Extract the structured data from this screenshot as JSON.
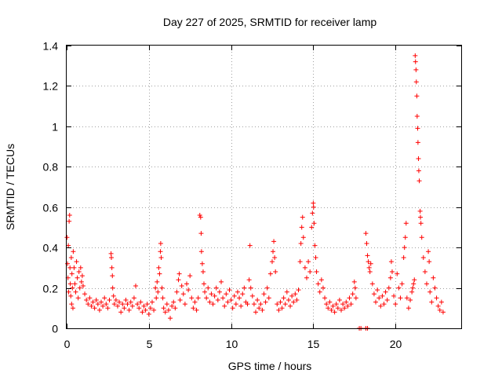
{
  "chart_data": {
    "type": "scatter",
    "title": "Day 227 of 2025, SRMTID for receiver lamp",
    "xlabel": "GPS time / hours",
    "ylabel": "SRMTID / TECUs",
    "xlim": [
      0,
      24
    ],
    "ylim": [
      0,
      1.4
    ],
    "xticks": [
      0,
      5,
      10,
      15,
      20
    ],
    "xtick_labels": [
      "0",
      "5",
      "10",
      "15",
      "20"
    ],
    "yticks": [
      0,
      0.2,
      0.4,
      0.6,
      0.8,
      1.0,
      1.2,
      1.4
    ],
    "ytick_labels": [
      "0",
      "0.2",
      "0.4",
      "0.6",
      "0.8",
      "1",
      "1.2",
      "1.4"
    ],
    "grid": true,
    "marker": "plus",
    "color": "#ff0000",
    "series": [
      {
        "name": "SRMTID",
        "points": [
          [
            0.02,
            0.45
          ],
          [
            0.05,
            0.32
          ],
          [
            0.08,
            0.25
          ],
          [
            0.1,
            0.41
          ],
          [
            0.12,
            0.18
          ],
          [
            0.15,
            0.53
          ],
          [
            0.18,
            0.56
          ],
          [
            0.2,
            0.3
          ],
          [
            0.22,
            0.22
          ],
          [
            0.25,
            0.16
          ],
          [
            0.28,
            0.35
          ],
          [
            0.3,
            0.12
          ],
          [
            0.32,
            0.27
          ],
          [
            0.35,
            0.2
          ],
          [
            0.38,
            0.1
          ],
          [
            0.4,
            0.38
          ],
          [
            0.45,
            0.3
          ],
          [
            0.5,
            0.22
          ],
          [
            0.55,
            0.18
          ],
          [
            0.6,
            0.33
          ],
          [
            0.65,
            0.25
          ],
          [
            0.7,
            0.15
          ],
          [
            0.75,
            0.28
          ],
          [
            0.8,
            0.2
          ],
          [
            0.85,
            0.3
          ],
          [
            0.9,
            0.23
          ],
          [
            0.95,
            0.26
          ],
          [
            1.0,
            0.21
          ],
          [
            1.1,
            0.17
          ],
          [
            1.2,
            0.14
          ],
          [
            1.3,
            0.12
          ],
          [
            1.4,
            0.15
          ],
          [
            1.5,
            0.11
          ],
          [
            1.6,
            0.13
          ],
          [
            1.7,
            0.1
          ],
          [
            1.8,
            0.14
          ],
          [
            1.9,
            0.12
          ],
          [
            2.0,
            0.09
          ],
          [
            2.1,
            0.13
          ],
          [
            2.2,
            0.11
          ],
          [
            2.3,
            0.15
          ],
          [
            2.4,
            0.12
          ],
          [
            2.5,
            0.1
          ],
          [
            2.6,
            0.14
          ],
          [
            2.7,
            0.37
          ],
          [
            2.72,
            0.35
          ],
          [
            2.75,
            0.3
          ],
          [
            2.78,
            0.26
          ],
          [
            2.8,
            0.2
          ],
          [
            2.85,
            0.16
          ],
          [
            2.9,
            0.12
          ],
          [
            3.0,
            0.14
          ],
          [
            3.1,
            0.11
          ],
          [
            3.2,
            0.13
          ],
          [
            3.3,
            0.08
          ],
          [
            3.4,
            0.12
          ],
          [
            3.5,
            0.1
          ],
          [
            3.6,
            0.14
          ],
          [
            3.7,
            0.12
          ],
          [
            3.8,
            0.09
          ],
          [
            3.9,
            0.13
          ],
          [
            4.0,
            0.11
          ],
          [
            4.1,
            0.15
          ],
          [
            4.2,
            0.21
          ],
          [
            4.3,
            0.12
          ],
          [
            4.4,
            0.1
          ],
          [
            4.5,
            0.13
          ],
          [
            4.6,
            0.08
          ],
          [
            4.7,
            0.11
          ],
          [
            4.8,
            0.09
          ],
          [
            4.9,
            0.12
          ],
          [
            5.0,
            0.07
          ],
          [
            5.1,
            0.1
          ],
          [
            5.2,
            0.13
          ],
          [
            5.3,
            0.09
          ],
          [
            5.4,
            0.2
          ],
          [
            5.45,
            0.15
          ],
          [
            5.5,
            0.23
          ],
          [
            5.55,
            0.18
          ],
          [
            5.6,
            0.3
          ],
          [
            5.65,
            0.27
          ],
          [
            5.7,
            0.38
          ],
          [
            5.72,
            0.42
          ],
          [
            5.75,
            0.35
          ],
          [
            5.8,
            0.2
          ],
          [
            5.85,
            0.15
          ],
          [
            5.9,
            0.1
          ],
          [
            6.0,
            0.08
          ],
          [
            6.1,
            0.12
          ],
          [
            6.2,
            0.09
          ],
          [
            6.3,
            0.05
          ],
          [
            6.4,
            0.11
          ],
          [
            6.5,
            0.13
          ],
          [
            6.6,
            0.1
          ],
          [
            6.7,
            0.18
          ],
          [
            6.8,
            0.24
          ],
          [
            6.85,
            0.27
          ],
          [
            6.9,
            0.14
          ],
          [
            7.0,
            0.21
          ],
          [
            7.1,
            0.17
          ],
          [
            7.2,
            0.12
          ],
          [
            7.3,
            0.22
          ],
          [
            7.4,
            0.19
          ],
          [
            7.5,
            0.26
          ],
          [
            7.6,
            0.15
          ],
          [
            7.7,
            0.1
          ],
          [
            7.8,
            0.13
          ],
          [
            7.9,
            0.09
          ],
          [
            8.0,
            0.15
          ],
          [
            8.1,
            0.56
          ],
          [
            8.15,
            0.55
          ],
          [
            8.18,
            0.47
          ],
          [
            8.2,
            0.38
          ],
          [
            8.25,
            0.32
          ],
          [
            8.3,
            0.28
          ],
          [
            8.35,
            0.22
          ],
          [
            8.4,
            0.18
          ],
          [
            8.5,
            0.15
          ],
          [
            8.6,
            0.2
          ],
          [
            8.7,
            0.13
          ],
          [
            8.8,
            0.17
          ],
          [
            8.9,
            0.12
          ],
          [
            9.0,
            0.16
          ],
          [
            9.1,
            0.2
          ],
          [
            9.2,
            0.14
          ],
          [
            9.3,
            0.18
          ],
          [
            9.4,
            0.23
          ],
          [
            9.5,
            0.15
          ],
          [
            9.6,
            0.11
          ],
          [
            9.7,
            0.17
          ],
          [
            9.8,
            0.13
          ],
          [
            9.9,
            0.19
          ],
          [
            10.0,
            0.14
          ],
          [
            10.1,
            0.1
          ],
          [
            10.2,
            0.16
          ],
          [
            10.3,
            0.12
          ],
          [
            10.4,
            0.18
          ],
          [
            10.5,
            0.15
          ],
          [
            10.6,
            0.11
          ],
          [
            10.7,
            0.17
          ],
          [
            10.8,
            0.2
          ],
          [
            10.9,
            0.13
          ],
          [
            11.0,
            0.12
          ],
          [
            11.1,
            0.24
          ],
          [
            11.15,
            0.41
          ],
          [
            11.2,
            0.2
          ],
          [
            11.3,
            0.16
          ],
          [
            11.4,
            0.12
          ],
          [
            11.5,
            0.08
          ],
          [
            11.6,
            0.14
          ],
          [
            11.7,
            0.1
          ],
          [
            11.8,
            0.12
          ],
          [
            11.9,
            0.09
          ],
          [
            12.0,
            0.17
          ],
          [
            12.1,
            0.13
          ],
          [
            12.2,
            0.2
          ],
          [
            12.3,
            0.15
          ],
          [
            12.4,
            0.27
          ],
          [
            12.5,
            0.33
          ],
          [
            12.55,
            0.38
          ],
          [
            12.6,
            0.43
          ],
          [
            12.65,
            0.35
          ],
          [
            12.7,
            0.28
          ],
          [
            12.8,
            0.12
          ],
          [
            12.9,
            0.09
          ],
          [
            13.0,
            0.13
          ],
          [
            13.1,
            0.1
          ],
          [
            13.2,
            0.15
          ],
          [
            13.3,
            0.12
          ],
          [
            13.4,
            0.18
          ],
          [
            13.5,
            0.14
          ],
          [
            13.6,
            0.11
          ],
          [
            13.7,
            0.16
          ],
          [
            13.8,
            0.13
          ],
          [
            13.9,
            0.17
          ],
          [
            14.0,
            0.14
          ],
          [
            14.1,
            0.19
          ],
          [
            14.2,
            0.33
          ],
          [
            14.25,
            0.42
          ],
          [
            14.3,
            0.5
          ],
          [
            14.35,
            0.55
          ],
          [
            14.4,
            0.45
          ],
          [
            14.5,
            0.3
          ],
          [
            14.6,
            0.25
          ],
          [
            14.7,
            0.33
          ],
          [
            14.8,
            0.28
          ],
          [
            14.9,
            0.5
          ],
          [
            14.95,
            0.57
          ],
          [
            15.0,
            0.62
          ],
          [
            15.02,
            0.6
          ],
          [
            15.05,
            0.52
          ],
          [
            15.1,
            0.41
          ],
          [
            15.15,
            0.35
          ],
          [
            15.2,
            0.28
          ],
          [
            15.3,
            0.22
          ],
          [
            15.4,
            0.18
          ],
          [
            15.5,
            0.24
          ],
          [
            15.6,
            0.2
          ],
          [
            15.7,
            0.15
          ],
          [
            15.8,
            0.12
          ],
          [
            15.9,
            0.1
          ],
          [
            16.0,
            0.13
          ],
          [
            16.1,
            0.09
          ],
          [
            16.2,
            0.11
          ],
          [
            16.3,
            0.08
          ],
          [
            16.4,
            0.12
          ],
          [
            16.5,
            0.1
          ],
          [
            16.6,
            0.14
          ],
          [
            16.7,
            0.09
          ],
          [
            16.8,
            0.12
          ],
          [
            16.9,
            0.1
          ],
          [
            17.0,
            0.13
          ],
          [
            17.1,
            0.11
          ],
          [
            17.2,
            0.15
          ],
          [
            17.3,
            0.12
          ],
          [
            17.4,
            0.17
          ],
          [
            17.5,
            0.23
          ],
          [
            17.55,
            0.2
          ],
          [
            17.6,
            0.15
          ],
          [
            17.8,
            0.0
          ],
          [
            17.9,
            0.0
          ],
          [
            18.2,
            0.0
          ],
          [
            18.3,
            0.0
          ],
          [
            18.2,
            0.47
          ],
          [
            18.25,
            0.42
          ],
          [
            18.3,
            0.36
          ],
          [
            18.35,
            0.33
          ],
          [
            18.4,
            0.3
          ],
          [
            18.45,
            0.28
          ],
          [
            18.5,
            0.32
          ],
          [
            18.6,
            0.22
          ],
          [
            18.7,
            0.17
          ],
          [
            18.8,
            0.13
          ],
          [
            18.9,
            0.19
          ],
          [
            19.0,
            0.15
          ],
          [
            19.1,
            0.11
          ],
          [
            19.2,
            0.16
          ],
          [
            19.3,
            0.12
          ],
          [
            19.4,
            0.18
          ],
          [
            19.5,
            0.14
          ],
          [
            19.6,
            0.2
          ],
          [
            19.7,
            0.25
          ],
          [
            19.75,
            0.33
          ],
          [
            19.8,
            0.28
          ],
          [
            19.9,
            0.16
          ],
          [
            20.0,
            0.12
          ],
          [
            20.1,
            0.27
          ],
          [
            20.2,
            0.2
          ],
          [
            20.3,
            0.15
          ],
          [
            20.4,
            0.22
          ],
          [
            20.5,
            0.35
          ],
          [
            20.55,
            0.4
          ],
          [
            20.6,
            0.45
          ],
          [
            20.65,
            0.52
          ],
          [
            20.7,
            0.15
          ],
          [
            20.8,
            0.1
          ],
          [
            20.9,
            0.14
          ],
          [
            21.0,
            0.18
          ],
          [
            21.05,
            0.2
          ],
          [
            21.1,
            0.22
          ],
          [
            21.15,
            0.24
          ],
          [
            21.2,
            1.35
          ],
          [
            21.22,
            1.32
          ],
          [
            21.25,
            1.28
          ],
          [
            21.27,
            1.22
          ],
          [
            21.3,
            1.15
          ],
          [
            21.32,
            1.05
          ],
          [
            21.35,
            0.99
          ],
          [
            21.37,
            0.92
          ],
          [
            21.4,
            0.84
          ],
          [
            21.42,
            0.78
          ],
          [
            21.45,
            0.73
          ],
          [
            21.5,
            0.58
          ],
          [
            21.52,
            0.55
          ],
          [
            21.55,
            0.52
          ],
          [
            21.6,
            0.45
          ],
          [
            21.7,
            0.35
          ],
          [
            21.8,
            0.28
          ],
          [
            21.9,
            0.22
          ],
          [
            22.0,
            0.38
          ],
          [
            22.05,
            0.33
          ],
          [
            22.1,
            0.18
          ],
          [
            22.2,
            0.13
          ],
          [
            22.3,
            0.25
          ],
          [
            22.4,
            0.2
          ],
          [
            22.5,
            0.15
          ],
          [
            22.6,
            0.11
          ],
          [
            22.7,
            0.09
          ],
          [
            22.8,
            0.13
          ],
          [
            22.9,
            0.08
          ]
        ]
      }
    ]
  }
}
